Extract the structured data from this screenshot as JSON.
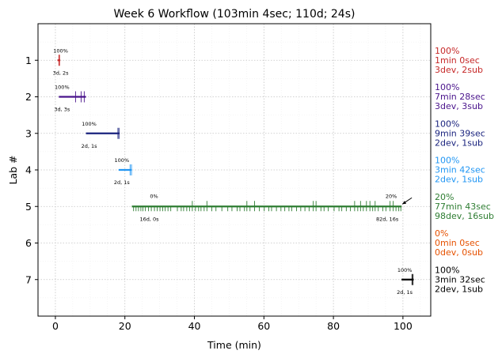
{
  "chart_data": {
    "type": "timeline",
    "title": "Week 6 Workflow (103min 4sec; 110d; 24s)",
    "xlabel": "Time (min)",
    "ylabel": "Lab #",
    "xlim": [
      -5,
      108
    ],
    "ylim": [
      0,
      8
    ],
    "x_ticks": [
      0,
      20,
      40,
      60,
      80,
      100
    ],
    "y_ticks": [
      1,
      2,
      3,
      4,
      5,
      6,
      7
    ],
    "grid": true,
    "labs": [
      {
        "lab": 1,
        "color": "#c62828",
        "start": 0.6,
        "end": 1.4,
        "percent_label": "100%",
        "counts_label": "3d, 2s",
        "side_lines": [
          "100%",
          "1min 0sec",
          "3dev, 2sub"
        ],
        "ticks": [
          1.0,
          1.2
        ]
      },
      {
        "lab": 2,
        "color": "#4a148c",
        "start": 1.0,
        "end": 8.8,
        "percent_label": "100%",
        "counts_label": "3d, 3s",
        "side_lines": [
          "100%",
          "7min 28sec",
          "3dev, 3sub"
        ],
        "ticks": [
          5.8,
          7.4,
          8.3
        ]
      },
      {
        "lab": 3,
        "color": "#1a237e",
        "start": 8.8,
        "end": 18.5,
        "percent_label": "100%",
        "counts_label": "2d, 1s",
        "side_lines": [
          "100%",
          "9min 39sec",
          "2dev, 1sub"
        ],
        "ticks": [
          18.0,
          18.3
        ]
      },
      {
        "lab": 4,
        "color": "#2196f3",
        "start": 18.2,
        "end": 22.0,
        "percent_label": "100%",
        "counts_label": "2d, 1s",
        "side_lines": [
          "100%",
          "3min 42sec",
          "2dev, 1sub"
        ],
        "ticks": [
          21.5,
          21.9
        ]
      },
      {
        "lab": 5,
        "color": "#2e7d32",
        "start": 22.0,
        "end": 99.6,
        "percent_label": "0%",
        "counts_label": "16d, 0s",
        "end_percent_label": "20%",
        "end_counts_label": "82d, 16s",
        "side_lines": [
          "20%",
          "77min 43sec",
          "98dev, 16sub"
        ],
        "ticks": [
          22.5,
          23.2,
          23.9,
          24.6,
          25.2,
          25.9,
          26.8,
          27.6,
          28.5,
          29.3,
          30.1,
          30.9,
          31.6,
          32.4,
          33.2,
          35.1,
          36.2,
          36.9,
          37.8,
          38.6,
          39.4,
          40.3,
          41.2,
          41.9,
          42.8,
          43.6,
          45.0,
          46.2,
          47.9,
          49.6,
          50.8,
          52.3,
          53.1,
          54.4,
          55.1,
          56.0,
          57.3,
          58.7,
          60.1,
          61.4,
          62.2,
          63.6,
          64.9,
          66.0,
          67.2,
          68.0,
          69.4,
          70.6,
          71.8,
          73.0,
          74.2,
          75.0,
          76.4,
          77.3,
          78.5,
          80.2,
          81.6,
          82.4,
          83.7,
          84.9,
          86.1,
          87.0,
          87.8,
          88.6,
          89.5,
          90.5,
          91.3,
          92.0,
          92.9,
          94.2,
          95.1,
          96.3,
          97.2,
          98.0,
          98.8,
          99.4
        ],
        "tall_ticks": [
          39.4,
          43.6,
          55.1,
          57.3,
          74.2,
          75.0,
          86.1,
          87.8,
          89.5,
          90.5,
          92.0,
          96.3,
          97.2
        ]
      },
      {
        "lab": 6,
        "color": "#e65100",
        "side_lines": [
          "0%",
          "0min 0sec",
          "0dev, 0sub"
        ]
      },
      {
        "lab": 7,
        "color": "#000000",
        "start": 99.6,
        "end": 103.1,
        "percent_label": "100%",
        "counts_label": "2d, 1s",
        "side_lines": [
          "100%",
          "3min 32sec",
          "2dev, 1sub"
        ],
        "ticks": [
          102.6,
          102.9
        ]
      }
    ]
  }
}
